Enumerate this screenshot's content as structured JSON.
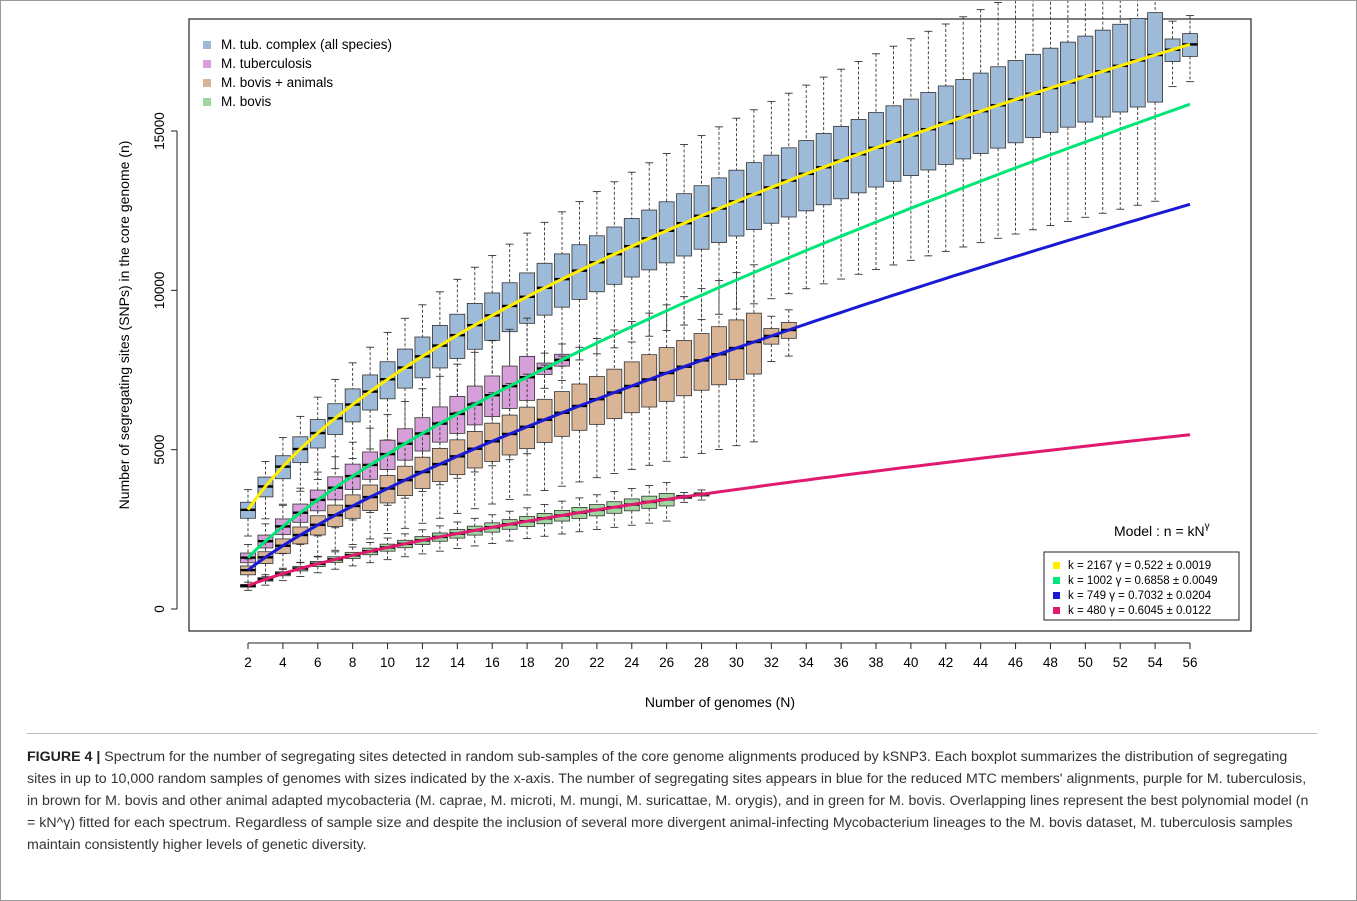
{
  "chart_data": {
    "type": "boxplot",
    "xlabel": "Number of genomes (N)",
    "ylabel": "Number of segregating sites (SNPs) in the core genome (n)",
    "xlim": [
      1,
      57
    ],
    "ylim": [
      -700,
      18500
    ],
    "x_ticks": [
      2,
      4,
      6,
      8,
      10,
      12,
      14,
      16,
      18,
      20,
      22,
      24,
      26,
      28,
      30,
      32,
      34,
      36,
      38,
      40,
      42,
      44,
      46,
      48,
      50,
      52,
      54,
      56
    ],
    "y_ticks": [
      0,
      5000,
      10000,
      15000
    ],
    "legend": {
      "position": "top-left",
      "entries": [
        "M. tub. complex (all species)",
        "M. tuberculosis",
        "M. bovis + animals",
        "M. bovis"
      ]
    },
    "series": [
      {
        "name": "M. tub. complex (all species)",
        "color": "#9dbbd9",
        "max_n": 56,
        "k": 2167,
        "gamma": 0.522,
        "spread": 0.085,
        "whisker": 0.24
      },
      {
        "name": "M. tuberculosis",
        "color": "#d69fd9",
        "max_n": 20,
        "k": 1002,
        "gamma": 0.6858,
        "spread": 0.1,
        "whisker": 0.3
      },
      {
        "name": "M. bovis + animals",
        "color": "#d9b495",
        "max_n": 33,
        "k": 749,
        "gamma": 0.7032,
        "spread": 0.12,
        "whisker": 0.34
      },
      {
        "name": "M. bovis",
        "color": "#9ed69e",
        "max_n": 28,
        "k": 480,
        "gamma": 0.6045,
        "spread": 0.06,
        "whisker": 0.18
      }
    ],
    "models": [
      {
        "color": "#ffee00",
        "k": 2167,
        "gamma": 0.522,
        "label": "k = 2167   γ = 0.522 ± 0.0019"
      },
      {
        "color": "#00e676",
        "k": 1002,
        "gamma": 0.6858,
        "label": "k = 1002   γ = 0.6858 ± 0.0049"
      },
      {
        "color": "#1a1ad4",
        "k": 749,
        "gamma": 0.7032,
        "label": "k = 749   γ = 0.7032 ± 0.0204"
      },
      {
        "color": "#e01a6e",
        "k": 480,
        "gamma": 0.6045,
        "label": "k = 480   γ = 0.6045 ± 0.0122"
      }
    ],
    "model_title": "Model : n = kN",
    "model_title_sup": "γ"
  },
  "caption": {
    "label": "FIGURE 4 |",
    "text": "Spectrum for the number of segregating sites detected in random sub-samples of the core genome alignments produced by kSNP3. Each boxplot summarizes the distribution of segregating sites in up to 10,000 random samples of genomes with sizes indicated by the x-axis. The number of segregating sites appears in blue for the reduced MTC members' alignments, purple for M. tuberculosis, in brown for M. bovis and other animal adapted mycobacteria (M. caprae, M. microti, M. mungi, M. suricattae, M. orygis), and in green for M. bovis. Overlapping lines represent the best polynomial model (n = kN^γ) fitted for each spectrum. Regardless of sample size and despite the inclusion of several more divergent animal-infecting Mycobacterium lineages to the M. bovis dataset, M. tuberculosis samples maintain consistently higher levels of genetic diversity."
  }
}
